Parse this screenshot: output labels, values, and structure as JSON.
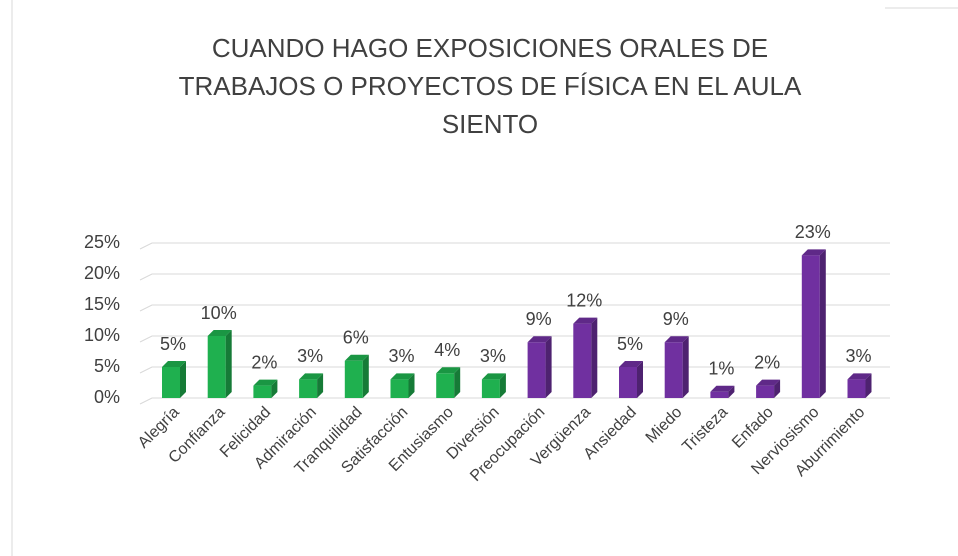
{
  "chart_data": {
    "type": "bar3d",
    "title": [
      "CUANDO HAGO EXPOSICIONES ORALES DE",
      "TRABAJOS O PROYECTOS DE FÍSICA EN EL AULA",
      "SIENTO"
    ],
    "categories": [
      "Alegría",
      "Confianza",
      "Felicidad",
      "Admiración",
      "Tranquilidad",
      "Satisfacción",
      "Entusiasmo",
      "Diversión",
      "Preocupación",
      "Vergüenza",
      "Ansiedad",
      "Miedo",
      "Tristeza",
      "Enfado",
      "Nerviosismo",
      "Aburrimiento"
    ],
    "values": [
      5,
      10,
      2,
      3,
      6,
      3,
      4,
      3,
      9,
      12,
      5,
      9,
      1,
      2,
      23,
      3
    ],
    "value_labels": [
      "5%",
      "10%",
      "2%",
      "3%",
      "6%",
      "3%",
      "4%",
      "3%",
      "9%",
      "12%",
      "5%",
      "9%",
      "1%",
      "2%",
      "23%",
      "3%"
    ],
    "colors": [
      "#1fb04f",
      "#1fb04f",
      "#1fb04f",
      "#1fb04f",
      "#1fb04f",
      "#1fb04f",
      "#1fb04f",
      "#1fb04f",
      "#7030a0",
      "#7030a0",
      "#7030a0",
      "#7030a0",
      "#7030a0",
      "#7030a0",
      "#7030a0",
      "#7030a0"
    ],
    "ylim": [
      0,
      25
    ],
    "yticks": [
      {
        "value": 0,
        "label": "0%"
      },
      {
        "value": 5,
        "label": "5%"
      },
      {
        "value": 10,
        "label": "10%"
      },
      {
        "value": 15,
        "label": "15%"
      },
      {
        "value": 20,
        "label": "20%"
      },
      {
        "value": 25,
        "label": "25%"
      }
    ],
    "grid": true
  }
}
